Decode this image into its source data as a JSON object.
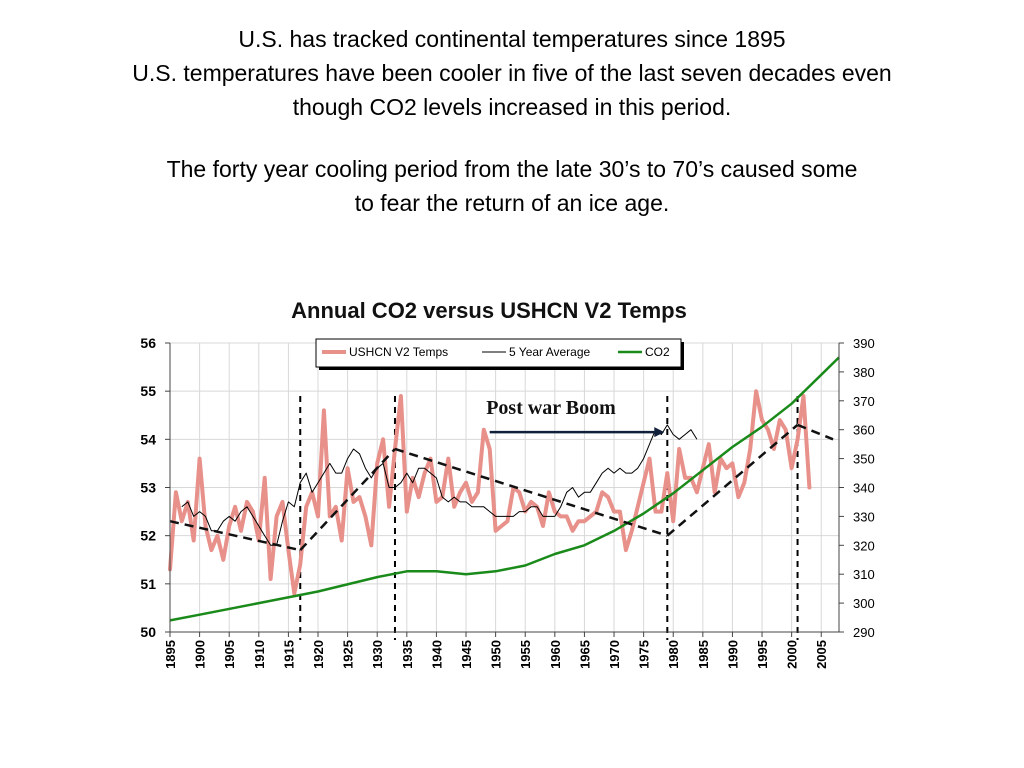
{
  "slide": {
    "heading_lines": [
      "U.S. has tracked continental temperatures since 1895",
      "U.S. temperatures have been cooler in five of the last seven decades even",
      "though CO2 levels increased in this period."
    ],
    "subheading_lines": [
      "The forty year cooling period from the late 30’s to 70’s caused some",
      "to fear the return of an ice age."
    ]
  },
  "chart_data": {
    "type": "line",
    "title": "Annual CO2 versus USHCN V2 Temps",
    "xlim": [
      1895,
      2008
    ],
    "ylim": [
      50,
      56
    ],
    "y2lim": [
      290,
      390
    ],
    "x_ticks": [
      1895,
      1900,
      1905,
      1910,
      1915,
      1920,
      1925,
      1930,
      1935,
      1940,
      1945,
      1950,
      1955,
      1960,
      1965,
      1970,
      1975,
      1980,
      1985,
      1990,
      1995,
      2000,
      2005
    ],
    "y_ticks": [
      50,
      51,
      52,
      53,
      54,
      55,
      56
    ],
    "y2_ticks": [
      290,
      300,
      310,
      320,
      330,
      340,
      350,
      360,
      370,
      380,
      390
    ],
    "grid": true,
    "legend_placement": "top-center",
    "colors": {
      "temps": "#e8908a",
      "avg": "#000000",
      "co2": "#1a8a1a"
    },
    "series": [
      {
        "name": "USHCN V2 Temps",
        "axis": "left",
        "x_start": 1895,
        "values": [
          51.3,
          52.9,
          52.3,
          52.7,
          51.9,
          53.6,
          52.2,
          51.7,
          52.0,
          51.5,
          52.2,
          52.6,
          52.1,
          52.7,
          52.5,
          51.9,
          53.2,
          51.1,
          52.4,
          52.7,
          51.7,
          50.8,
          51.4,
          52.6,
          52.9,
          52.4,
          54.6,
          52.4,
          52.6,
          51.9,
          53.4,
          52.7,
          52.8,
          52.4,
          51.8,
          53.5,
          54.0,
          52.6,
          53.8,
          54.9,
          52.5,
          53.2,
          52.8,
          53.3,
          53.6,
          52.7,
          52.8,
          53.6,
          52.6,
          52.9,
          53.1,
          52.7,
          52.9,
          54.2,
          53.8,
          52.1,
          52.2,
          52.3,
          53.0,
          52.9,
          52.5,
          52.7,
          52.6,
          52.2,
          52.9,
          52.5,
          52.4,
          52.4,
          52.1,
          52.3,
          52.3,
          52.4,
          52.5,
          52.9,
          52.8,
          52.5,
          52.5,
          51.7,
          52.1,
          52.6,
          53.1,
          53.6,
          52.5,
          52.5,
          53.3,
          52.3,
          53.8,
          53.2,
          53.2,
          52.9,
          53.4,
          53.9,
          52.9,
          53.6,
          53.4,
          53.5,
          52.8,
          53.1,
          53.8,
          55.0,
          54.4,
          54.2,
          53.8,
          54.4,
          54.2,
          53.4,
          54.0,
          54.9,
          53.0
        ]
      },
      {
        "name": "5 Year Average",
        "axis": "left",
        "x_start": 1897,
        "values": [
          52.6,
          52.7,
          52.4,
          52.5,
          52.4,
          52.1,
          52.1,
          52.3,
          52.4,
          52.3,
          52.5,
          52.6,
          52.4,
          52.2,
          52.0,
          51.8,
          51.8,
          52.3,
          52.7,
          52.6,
          53.1,
          53.3,
          52.9,
          53.1,
          53.3,
          53.5,
          53.3,
          53.3,
          53.6,
          53.8,
          53.7,
          53.4,
          53.2,
          53.4,
          53.5,
          53.0,
          53.0,
          53.1,
          53.3,
          53.1,
          53.4,
          53.4,
          53.3,
          53.2,
          52.8,
          52.7,
          52.8,
          52.7,
          52.7,
          52.6,
          52.6,
          52.6,
          52.5,
          52.4,
          52.4,
          52.4,
          52.4,
          52.5,
          52.5,
          52.6,
          52.6,
          52.4,
          52.4,
          52.4,
          52.6,
          52.9,
          53.0,
          52.8,
          52.9,
          52.9,
          53.1,
          53.3,
          53.4,
          53.3,
          53.4,
          53.3,
          53.3,
          53.4,
          53.6,
          53.9,
          54.2,
          54.1,
          54.3,
          54.1,
          54.0,
          54.1,
          54.2,
          54.0
        ]
      },
      {
        "name": "CO2",
        "axis": "right",
        "x": [
          1895,
          1900,
          1910,
          1920,
          1930,
          1935,
          1940,
          1945,
          1950,
          1955,
          1960,
          1965,
          1970,
          1975,
          1980,
          1985,
          1990,
          1995,
          2000,
          2005,
          2008
        ],
        "values": [
          294,
          296,
          300,
          304,
          309,
          311,
          311,
          310,
          311,
          313,
          317,
          320,
          325,
          331,
          338,
          346,
          354,
          361,
          369,
          379,
          385
        ]
      }
    ],
    "trend_lines": [
      {
        "x": [
          1895,
          1917
        ],
        "y": [
          52.3,
          51.7
        ]
      },
      {
        "x": [
          1917,
          1933
        ],
        "y": [
          51.7,
          53.8
        ]
      },
      {
        "x": [
          1933,
          1979
        ],
        "y": [
          53.8,
          52.0
        ]
      },
      {
        "x": [
          1979,
          2001
        ],
        "y": [
          52.0,
          54.3
        ]
      },
      {
        "x": [
          2001,
          2007
        ],
        "y": [
          54.3,
          54.0
        ]
      }
    ],
    "vertical_markers": [
      1917,
      1933,
      1979,
      2001
    ],
    "annotation": {
      "text": "Post war Boom",
      "arrow_from_x": 1949,
      "arrow_to_x": 1979,
      "arrow_y": 54.15
    }
  }
}
